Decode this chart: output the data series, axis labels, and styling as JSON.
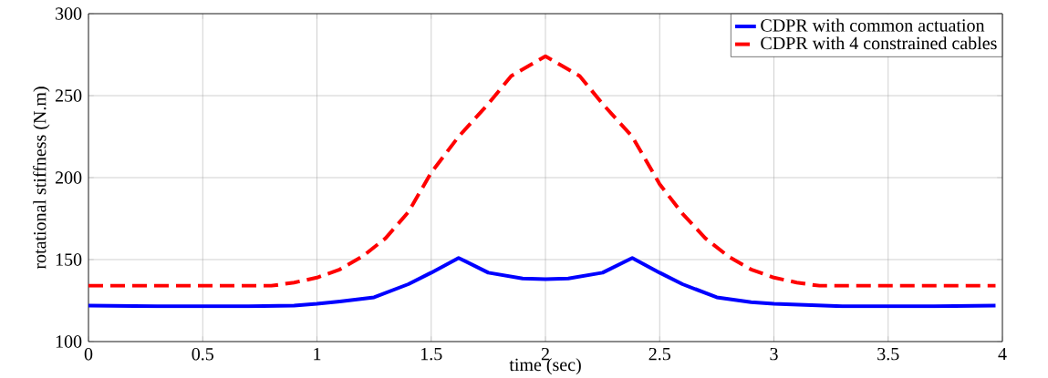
{
  "chart_data": {
    "type": "line",
    "xlabel": "time (sec)",
    "ylabel": "rotational stiffness (N.m)",
    "xlim": [
      0,
      4
    ],
    "ylim": [
      100,
      300
    ],
    "xticks": [
      0,
      0.5,
      1,
      1.5,
      2,
      2.5,
      3,
      3.5,
      4
    ],
    "yticks": [
      100,
      150,
      200,
      250,
      300
    ],
    "grid": true,
    "legend": "top right",
    "marker": "none",
    "series": [
      {
        "name": "CDPR with common actuation",
        "color": "#0000ff",
        "line_style": "solid",
        "x": [
          0,
          0.3,
          0.7,
          0.9,
          1,
          1.1,
          1.25,
          1.4,
          1.5,
          1.62,
          1.75,
          1.9,
          2,
          2.1,
          2.25,
          2.38,
          2.5,
          2.6,
          2.75,
          2.9,
          3,
          3.3,
          3.7,
          3.97
        ],
        "values": [
          122,
          121.5,
          121.5,
          122,
          123,
          124.5,
          127,
          135,
          142,
          151,
          142,
          138.5,
          138,
          138.5,
          142,
          151,
          142,
          135,
          127,
          124,
          123,
          121.5,
          121.5,
          122
        ]
      },
      {
        "name": "CDPR with 4 constrained cables",
        "color": "#ff0000",
        "line_style": "dashed",
        "x": [
          0,
          0.5,
          0.8,
          0.9,
          1,
          1.1,
          1.2,
          1.3,
          1.4,
          1.5,
          1.62,
          1.75,
          1.85,
          2,
          2.15,
          2.25,
          2.38,
          2.5,
          2.6,
          2.7,
          2.8,
          2.9,
          3,
          3.1,
          3.2,
          3.5,
          3.97
        ],
        "values": [
          134,
          134,
          134,
          136,
          139,
          144,
          152,
          163,
          179,
          203,
          225,
          245,
          262,
          274,
          262,
          245,
          225,
          196,
          178,
          163,
          152,
          144,
          139,
          136,
          134,
          134,
          134
        ]
      }
    ]
  }
}
